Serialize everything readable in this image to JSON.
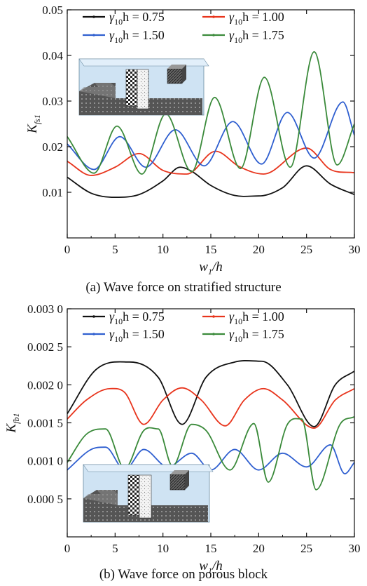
{
  "colors": {
    "black": "#111111",
    "red": "#e8341c",
    "blue": "#2f5fd0",
    "green": "#3a8a3a",
    "water": "#cfe3f3"
  },
  "chart_data": [
    {
      "type": "line",
      "caption": "(a) Wave force on stratified structure",
      "xlabel": "w",
      "xlabel_sub": "1",
      "xlabel_suffix": "/h",
      "ylabel": "K",
      "ylabel_sub": "fs1",
      "xlim": [
        0,
        30
      ],
      "ylim": [
        0,
        0.05
      ],
      "xticks": [
        0,
        5,
        10,
        15,
        20,
        25,
        30
      ],
      "xtick_labels": [
        "0",
        "5",
        "10",
        "15",
        "20",
        "25",
        "30"
      ],
      "yticks": [
        0.01,
        0.02,
        0.03,
        0.04,
        0.05
      ],
      "ytick_labels": [
        "0.01",
        "0.02",
        "0.03",
        "0.04",
        "0.05"
      ],
      "legend": {
        "placement": "top"
      },
      "series": [
        {
          "name": "γ10h = 0.75",
          "label_pre": "γ",
          "label_sub": "10",
          "label_post": "h = 0.75",
          "color": "#111111",
          "points": [
            [
              0,
              0.0133
            ],
            [
              2.5,
              0.0098
            ],
            [
              5,
              0.0089
            ],
            [
              7.5,
              0.0095
            ],
            [
              10,
              0.0125
            ],
            [
              11.8,
              0.0155
            ],
            [
              13,
              0.0146
            ],
            [
              15,
              0.0115
            ],
            [
              17.5,
              0.0093
            ],
            [
              20,
              0.0092
            ],
            [
              22.5,
              0.011
            ],
            [
              25,
              0.0158
            ],
            [
              27.5,
              0.0118
            ],
            [
              30,
              0.0095
            ]
          ]
        },
        {
          "name": "γ10h = 1.00",
          "label_pre": "γ",
          "label_sub": "10",
          "label_post": "h = 1.00",
          "color": "#e8341c",
          "points": [
            [
              0,
              0.0168
            ],
            [
              2.5,
              0.0137
            ],
            [
              5,
              0.0155
            ],
            [
              7.5,
              0.0185
            ],
            [
              10,
              0.0148
            ],
            [
              12.5,
              0.014
            ],
            [
              15.5,
              0.019
            ],
            [
              18,
              0.0156
            ],
            [
              20.5,
              0.014
            ],
            [
              25,
              0.0197
            ],
            [
              27.5,
              0.015
            ],
            [
              30,
              0.0143
            ]
          ]
        },
        {
          "name": "γ10h = 1.50",
          "label_pre": "γ",
          "label_sub": "10",
          "label_post": "h = 1.50",
          "color": "#2f5fd0",
          "points": [
            [
              0,
              0.0206
            ],
            [
              2.8,
              0.015
            ],
            [
              5.5,
              0.0222
            ],
            [
              8.2,
              0.0155
            ],
            [
              11.3,
              0.0237
            ],
            [
              14.3,
              0.0158
            ],
            [
              17.3,
              0.0255
            ],
            [
              20.3,
              0.0162
            ],
            [
              23,
              0.0275
            ],
            [
              25.8,
              0.0175
            ],
            [
              28.8,
              0.0298
            ],
            [
              30,
              0.0225
            ]
          ]
        },
        {
          "name": "γ10h = 1.75",
          "label_pre": "γ",
          "label_sub": "10",
          "label_post": "h = 1.75",
          "color": "#3a8a3a",
          "points": [
            [
              0,
              0.0222
            ],
            [
              2.8,
              0.0142
            ],
            [
              5.2,
              0.0245
            ],
            [
              7.8,
              0.014
            ],
            [
              10.3,
              0.0272
            ],
            [
              13,
              0.0145
            ],
            [
              15.4,
              0.0308
            ],
            [
              18.1,
              0.0152
            ],
            [
              20.6,
              0.0352
            ],
            [
              23.3,
              0.0155
            ],
            [
              25.8,
              0.0408
            ],
            [
              28.2,
              0.016
            ],
            [
              30,
              0.025
            ]
          ]
        }
      ]
    },
    {
      "type": "line",
      "caption": "(b) Wave force on porous block",
      "xlabel": "w",
      "xlabel_sub": "1",
      "xlabel_suffix": "/h",
      "ylabel": "K",
      "ylabel_sub": "fb1",
      "xlim": [
        0,
        30
      ],
      "ylim": [
        0,
        0.003
      ],
      "xticks": [
        0,
        5,
        10,
        15,
        20,
        25,
        30
      ],
      "xtick_labels": [
        "0",
        "5",
        "10",
        "15",
        "20",
        "25",
        "30"
      ],
      "yticks": [
        0.0005,
        0.001,
        0.0015,
        0.002,
        0.0025,
        0.003
      ],
      "ytick_labels": [
        "0.000 5",
        "0.001 0",
        "0.001 5",
        "0.002 0",
        "0.002 5",
        "0.003 0"
      ],
      "legend": {
        "placement": "top"
      },
      "series": [
        {
          "name": "γ10h = 0.75",
          "label_pre": "γ",
          "label_sub": "10",
          "label_post": "h = 0.75",
          "color": "#111111",
          "points": [
            [
              0,
              0.00162
            ],
            [
              3,
              0.0022
            ],
            [
              6.5,
              0.0023
            ],
            [
              9.5,
              0.0021
            ],
            [
              12,
              0.00148
            ],
            [
              14.5,
              0.0021
            ],
            [
              17.5,
              0.0023
            ],
            [
              20.3,
              0.00231
            ],
            [
              23,
              0.002
            ],
            [
              25.8,
              0.00145
            ],
            [
              28,
              0.002
            ],
            [
              30,
              0.00218
            ]
          ]
        },
        {
          "name": "γ10h = 1.00",
          "label_pre": "γ",
          "label_sub": "10",
          "label_post": "h = 1.00",
          "color": "#e8341c",
          "points": [
            [
              0,
              0.00155
            ],
            [
              2,
              0.0018
            ],
            [
              4.5,
              0.00195
            ],
            [
              6,
              0.0019
            ],
            [
              8,
              0.00148
            ],
            [
              10,
              0.0018
            ],
            [
              12,
              0.00196
            ],
            [
              14,
              0.0018
            ],
            [
              16.5,
              0.00146
            ],
            [
              18.5,
              0.0018
            ],
            [
              20.5,
              0.00195
            ],
            [
              22.5,
              0.0018
            ],
            [
              25.8,
              0.00143
            ],
            [
              28,
              0.0018
            ],
            [
              30,
              0.00195
            ]
          ]
        },
        {
          "name": "γ10h = 1.50",
          "label_pre": "γ",
          "label_sub": "10",
          "label_post": "h = 1.50",
          "color": "#2f5fd0",
          "points": [
            [
              0,
              0.00088
            ],
            [
              2.5,
              0.00115
            ],
            [
              4,
              0.00118
            ],
            [
              6,
              0.00088
            ],
            [
              8,
              0.00115
            ],
            [
              10.5,
              0.00092
            ],
            [
              13,
              0.0011
            ],
            [
              15,
              0.00088
            ],
            [
              17.5,
              0.00115
            ],
            [
              20,
              0.00088
            ],
            [
              22.5,
              0.0011
            ],
            [
              25,
              0.00092
            ],
            [
              27.5,
              0.00121
            ],
            [
              29,
              0.00083
            ],
            [
              30,
              0.00098
            ]
          ]
        },
        {
          "name": "γ10h = 1.75",
          "label_pre": "γ",
          "label_sub": "10",
          "label_post": "h = 1.75",
          "color": "#3a8a3a",
          "points": [
            [
              0,
              0.00098
            ],
            [
              2,
              0.00135
            ],
            [
              4,
              0.00142
            ],
            [
              6,
              0.0009
            ],
            [
              8,
              0.0014
            ],
            [
              9.5,
              0.00142
            ],
            [
              11,
              0.00093
            ],
            [
              13,
              0.00148
            ],
            [
              14.5,
              0.0014
            ],
            [
              17,
              0.00088
            ],
            [
              19.5,
              0.00149
            ],
            [
              21,
              0.00072
            ],
            [
              23,
              0.00148
            ],
            [
              24.5,
              0.00155
            ],
            [
              26,
              0.00062
            ],
            [
              28.5,
              0.00148
            ],
            [
              30,
              0.00158
            ]
          ]
        }
      ]
    }
  ]
}
